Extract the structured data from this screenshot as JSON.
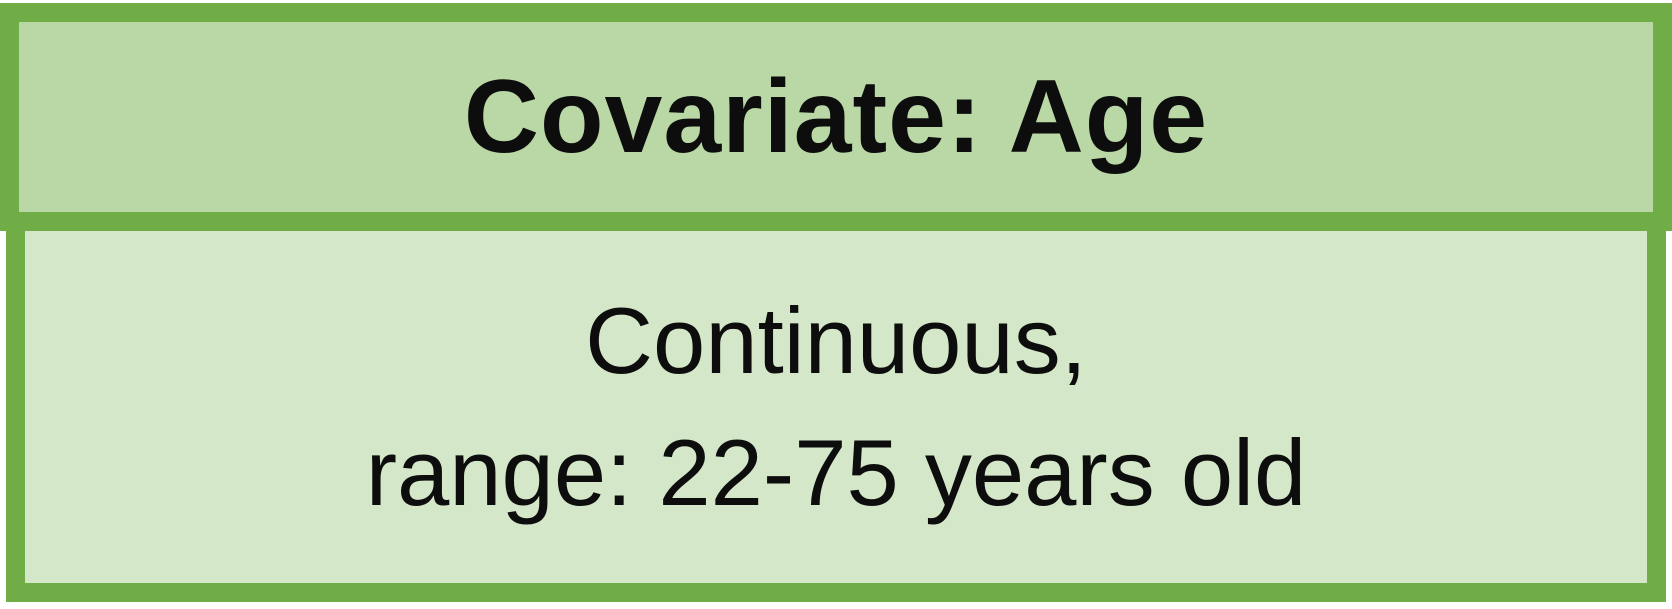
{
  "header": {
    "title": "Covariate: Age"
  },
  "body": {
    "line1": "Continuous,",
    "line2": "range: 22-75 years old"
  },
  "colors": {
    "border": "#70ad47",
    "header_fill": "#b9d8a6",
    "body_fill": "#d4e7c9",
    "text": "#0d0d0d"
  }
}
